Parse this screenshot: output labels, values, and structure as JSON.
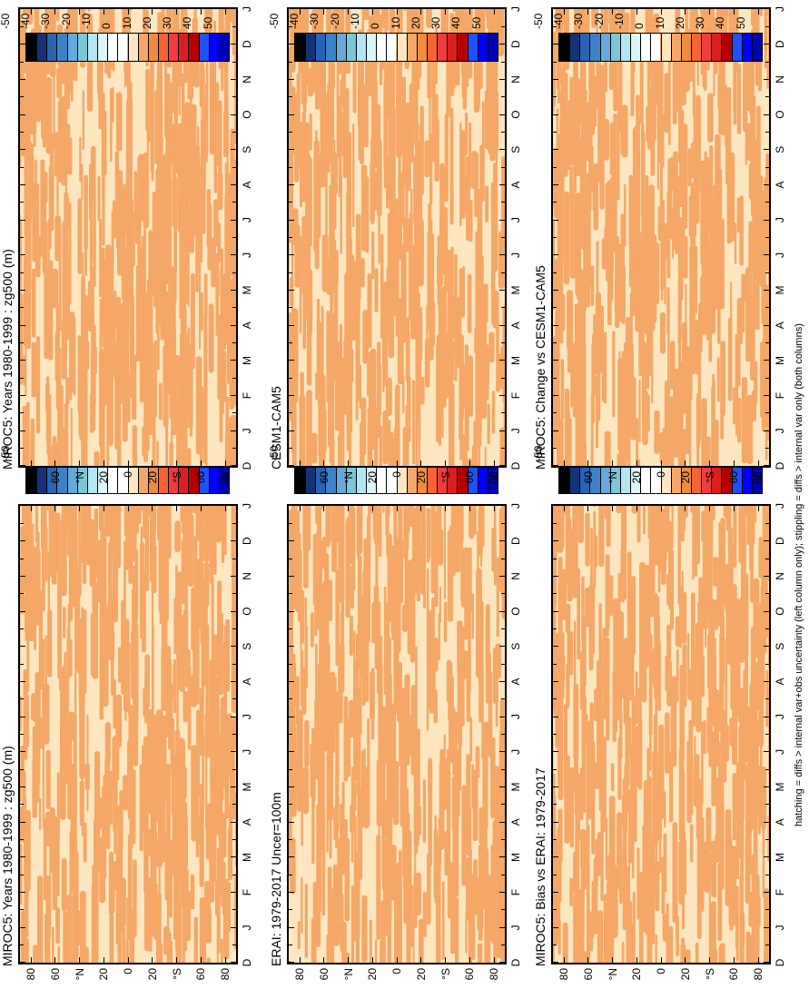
{
  "figure": {
    "footnote": "hatching = diffs > internal var+obs uncertainty (left column only); stippling = diffs > internal var only (both columns)"
  },
  "colors": {
    "field_light": "#fde6c0",
    "field_dark": "#f4a767"
  },
  "colorbar": {
    "colors": [
      "#0000b4",
      "#0000ff",
      "#1e50ff",
      "#b40000",
      "#dc1e1e",
      "#f03c3c",
      "#f56432",
      "#f08c3c",
      "#f4a767",
      "#fde6c0",
      "#ffffff",
      "#ffffff",
      "#dcf5f5",
      "#b4e6f0",
      "#78c8d7",
      "#64aadc",
      "#3c82c8",
      "#2864b4",
      "#143278",
      "#000000"
    ],
    "labels": [
      "50",
      "40",
      "30",
      "20",
      "10",
      "0",
      "-10",
      "-20",
      "-30",
      "-40",
      "-50"
    ]
  },
  "axes": {
    "x_ticks": [
      "D",
      "J",
      "F",
      "M",
      "A",
      "M",
      "J",
      "J",
      "A",
      "S",
      "O",
      "N",
      "D",
      "J"
    ],
    "y_ticks": [
      "80",
      "60",
      "°N",
      "20",
      "0",
      "20",
      "°S",
      "60",
      "80"
    ]
  },
  "panels": [
    {
      "id": "miroc5-left",
      "title": "MIROC5: Years 1980-1999 : zg500 (m)"
    },
    {
      "id": "erai",
      "title": "ERAI: 1979-2017 Uncer=100m"
    },
    {
      "id": "bias",
      "title": "MIROC5: Bias vs ERAI: 1979-2017"
    },
    {
      "id": "miroc5-right",
      "title": "MIROC5: Years 1980-1999 : zg500 (m)"
    },
    {
      "id": "cesm",
      "title": "CESM1-CAM5"
    },
    {
      "id": "change",
      "title": "MIROC5: Change vs CESM1-CAM5"
    }
  ],
  "chart_data": [
    {
      "type": "heatmap",
      "title": "MIROC5: Years 1980-1999 : zg500 (m)",
      "x_categories": [
        "D",
        "J",
        "F",
        "M",
        "A",
        "M",
        "J",
        "J",
        "A",
        "S",
        "O",
        "N",
        "D",
        "J"
      ],
      "y_ticks": [
        "80",
        "60",
        "°N",
        "20",
        "0",
        "20",
        "°S",
        "60",
        "80"
      ],
      "zlim": [
        -50,
        50
      ],
      "dominant_levels": [
        0,
        10
      ]
    },
    {
      "type": "heatmap",
      "title": "ERAI: 1979-2017 Uncer=100m",
      "x_categories": [
        "D",
        "J",
        "F",
        "M",
        "A",
        "M",
        "J",
        "J",
        "A",
        "S",
        "O",
        "N",
        "D",
        "J"
      ],
      "y_ticks": [
        "80",
        "60",
        "°N",
        "20",
        "0",
        "20",
        "°S",
        "60",
        "80"
      ],
      "zlim": [
        -50,
        50
      ],
      "dominant_levels": [
        0,
        10
      ]
    },
    {
      "type": "heatmap",
      "title": "MIROC5: Bias vs ERAI: 1979-2017",
      "x_categories": [
        "D",
        "J",
        "F",
        "M",
        "A",
        "M",
        "J",
        "J",
        "A",
        "S",
        "O",
        "N",
        "D",
        "J"
      ],
      "y_ticks": [
        "80",
        "60",
        "°N",
        "20",
        "0",
        "20",
        "°S",
        "60",
        "80"
      ],
      "zlim": [
        -50,
        50
      ],
      "dominant_levels": [
        0,
        10
      ]
    },
    {
      "type": "heatmap",
      "title": "MIROC5: Years 1980-1999 : zg500 (m)",
      "x_categories": [
        "D",
        "J",
        "F",
        "M",
        "A",
        "M",
        "J",
        "J",
        "A",
        "S",
        "O",
        "N",
        "D",
        "J"
      ],
      "y_ticks": [
        "80",
        "60",
        "°N",
        "20",
        "0",
        "20",
        "°S",
        "60",
        "80"
      ],
      "zlim": [
        -50,
        50
      ],
      "dominant_levels": [
        0,
        10
      ]
    },
    {
      "type": "heatmap",
      "title": "CESM1-CAM5",
      "x_categories": [
        "D",
        "J",
        "F",
        "M",
        "A",
        "M",
        "J",
        "J",
        "A",
        "S",
        "O",
        "N",
        "D",
        "J"
      ],
      "y_ticks": [
        "80",
        "60",
        "°N",
        "20",
        "0",
        "20",
        "°S",
        "60",
        "80"
      ],
      "zlim": [
        -50,
        50
      ],
      "dominant_levels": [
        0,
        10
      ]
    },
    {
      "type": "heatmap",
      "title": "MIROC5: Change vs CESM1-CAM5",
      "x_categories": [
        "D",
        "J",
        "F",
        "M",
        "A",
        "M",
        "J",
        "J",
        "A",
        "S",
        "O",
        "N",
        "D",
        "J"
      ],
      "y_ticks": [
        "80",
        "60",
        "°N",
        "20",
        "0",
        "20",
        "°S",
        "60",
        "80"
      ],
      "zlim": [
        -50,
        50
      ],
      "dominant_levels": [
        0,
        10
      ]
    }
  ]
}
